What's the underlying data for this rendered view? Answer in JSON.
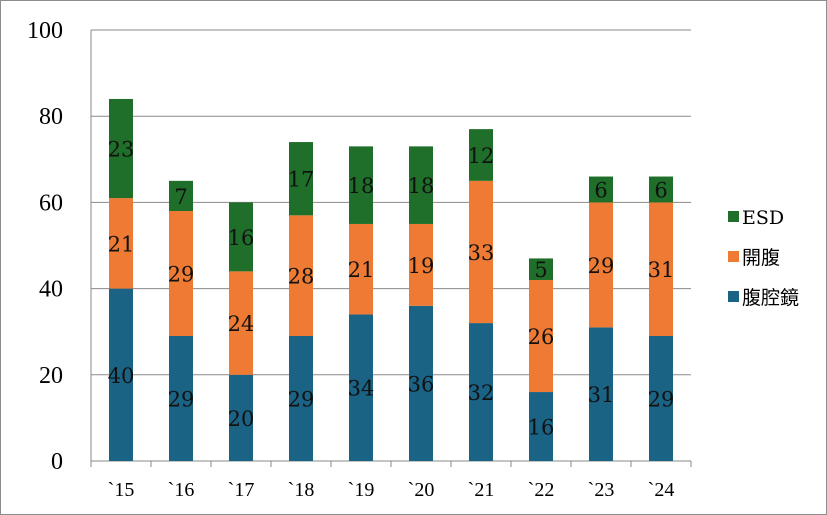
{
  "chart_data": {
    "type": "bar",
    "stacked": true,
    "categories": [
      "`15",
      "`16",
      "`17",
      "`18",
      "`19",
      "`20",
      "`21",
      "`22",
      "`23",
      "`24"
    ],
    "series": [
      {
        "name": "腹腔鏡",
        "color": "#1b6384",
        "values": [
          40,
          29,
          20,
          29,
          34,
          36,
          32,
          16,
          31,
          29
        ]
      },
      {
        "name": "開腹",
        "color": "#ee7a34",
        "values": [
          21,
          29,
          24,
          28,
          21,
          19,
          33,
          26,
          29,
          31
        ]
      },
      {
        "name": "ESD",
        "color": "#1f6e29",
        "values": [
          23,
          7,
          16,
          17,
          18,
          18,
          12,
          5,
          6,
          6
        ]
      }
    ],
    "ylim": [
      0,
      100
    ],
    "yticks": [
      0,
      20,
      40,
      60,
      80,
      100
    ],
    "grid": true,
    "legend": "right",
    "legend_order": [
      "ESD",
      "開腹",
      "腹腔鏡"
    ]
  }
}
